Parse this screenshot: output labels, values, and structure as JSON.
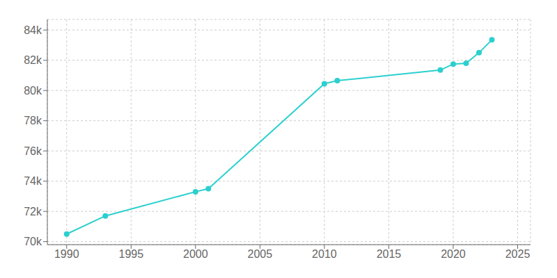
{
  "chart_data": {
    "type": "line",
    "x": [
      1990,
      1993,
      2000,
      2001,
      2010,
      2011,
      2019,
      2020,
      2021,
      2022,
      2023
    ],
    "values": [
      70500,
      71700,
      73300,
      73500,
      80450,
      80650,
      81350,
      81750,
      81800,
      82500,
      83350
    ],
    "color": "#2dcfcf",
    "marker": "circle",
    "xlim": [
      1988.5,
      2026
    ],
    "ylim": [
      69800,
      84700
    ],
    "xticks": [
      1990,
      1995,
      2000,
      2005,
      2010,
      2015,
      2020,
      2025
    ],
    "yticks": [
      {
        "value": 70000,
        "label": "70k"
      },
      {
        "value": 72000,
        "label": "72k"
      },
      {
        "value": 74000,
        "label": "74k"
      },
      {
        "value": 76000,
        "label": "76k"
      },
      {
        "value": 78000,
        "label": "78k"
      },
      {
        "value": 80000,
        "label": "80k"
      },
      {
        "value": 82000,
        "label": "82k"
      },
      {
        "value": 84000,
        "label": "84k"
      }
    ],
    "grid": true
  }
}
